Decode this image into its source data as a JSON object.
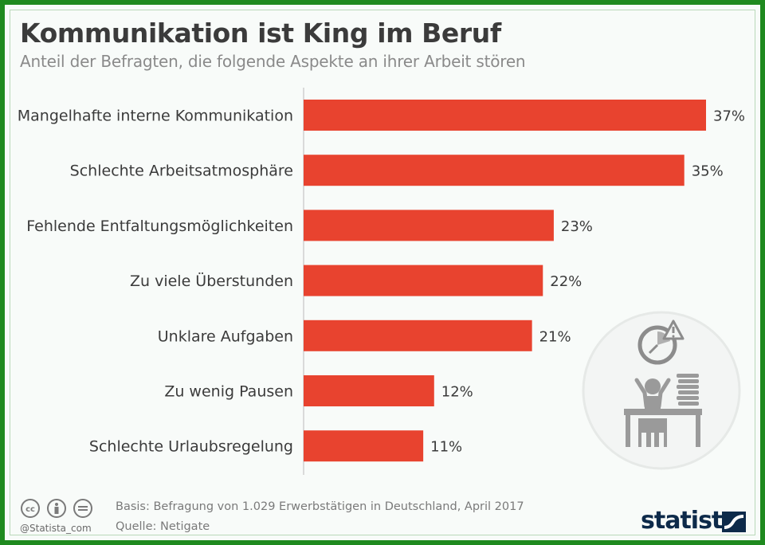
{
  "header": {
    "title": "Kommunikation ist King im Beruf",
    "subtitle": "Anteil der Befragten, die folgende Aspekte an ihrer Arbeit stören"
  },
  "chart_data": {
    "type": "bar",
    "orientation": "horizontal",
    "categories": [
      "Mangelhafte interne Kommunikation",
      "Schlechte Arbeitsatmosphäre",
      "Fehlende Entfaltungsmöglichkeiten",
      "Zu viele Überstunden",
      "Unklare Aufgaben",
      "Zu wenig Pausen",
      "Schlechte Urlaubsregelung"
    ],
    "values": [
      37,
      35,
      23,
      22,
      21,
      12,
      11
    ],
    "value_labels": [
      "37%",
      "35%",
      "23%",
      "22%",
      "21%",
      "12%",
      "11%"
    ],
    "unit": "%",
    "xlim": [
      0,
      37
    ],
    "grid": false,
    "bar_color": "#e8432f"
  },
  "footer": {
    "basis": "Basis: Befragung von 1.029 Erwerbstätigen in Deutschland, April 2017",
    "source": "Quelle: Netigate",
    "handle": "@Statista_com",
    "logo": "statista",
    "license_icons": [
      "cc-icon",
      "by-icon",
      "nd-icon"
    ]
  },
  "illustration": {
    "icon": "stressed-worker-icon"
  },
  "colors": {
    "frame": "#1f8a1f",
    "title": "#3b3b3b",
    "subtitle": "#8a8a8a",
    "label": "#3b3b3b",
    "logo": "#0d2a4a"
  }
}
